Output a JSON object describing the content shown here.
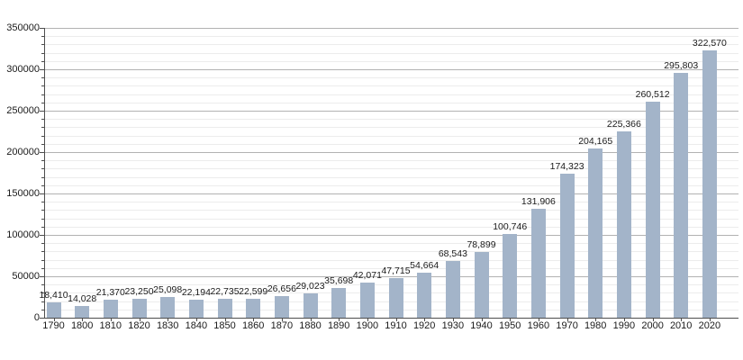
{
  "chart_data": {
    "type": "bar",
    "title": "",
    "xlabel": "",
    "ylabel": "",
    "legend": "none",
    "categories": [
      "1790",
      "1800",
      "1810",
      "1820",
      "1830",
      "1840",
      "1850",
      "1860",
      "1870",
      "1880",
      "1890",
      "1900",
      "1910",
      "1920",
      "1930",
      "1940",
      "1950",
      "1960",
      "1970",
      "1980",
      "1990",
      "2000",
      "2010",
      "2020"
    ],
    "values": [
      18410,
      14028,
      21370,
      23250,
      25098,
      22194,
      22735,
      22599,
      26656,
      29023,
      35698,
      42071,
      47715,
      54664,
      68543,
      78899,
      100746,
      131906,
      174323,
      204165,
      225366,
      260512,
      295803,
      322570
    ],
    "value_labels": [
      "18,410",
      "14,028",
      "21,370",
      "23,250",
      "25,098",
      "22,194",
      "22,735",
      "22,599",
      "26,656",
      "29,023",
      "35,698",
      "42,071",
      "47,715",
      "54,664",
      "68,543",
      "78,899",
      "100,746",
      "131,906",
      "174,323",
      "204,165",
      "225,366",
      "260,512",
      "295,803",
      "322,570"
    ],
    "ylim": [
      0,
      350000
    ],
    "y_major_step": 50000,
    "y_minor_step": 10000,
    "y_tick_labels": [
      "0",
      "50000",
      "100000",
      "150000",
      "200000",
      "250000",
      "300000",
      "350000"
    ],
    "grid": "horizontal major+minor",
    "colors": {
      "bar": "#a3b4c9",
      "major_grid": "#b2b2b2",
      "minor_grid": "#ececec",
      "axis": "#4d4d4d",
      "text": "#1a1a1a"
    }
  }
}
